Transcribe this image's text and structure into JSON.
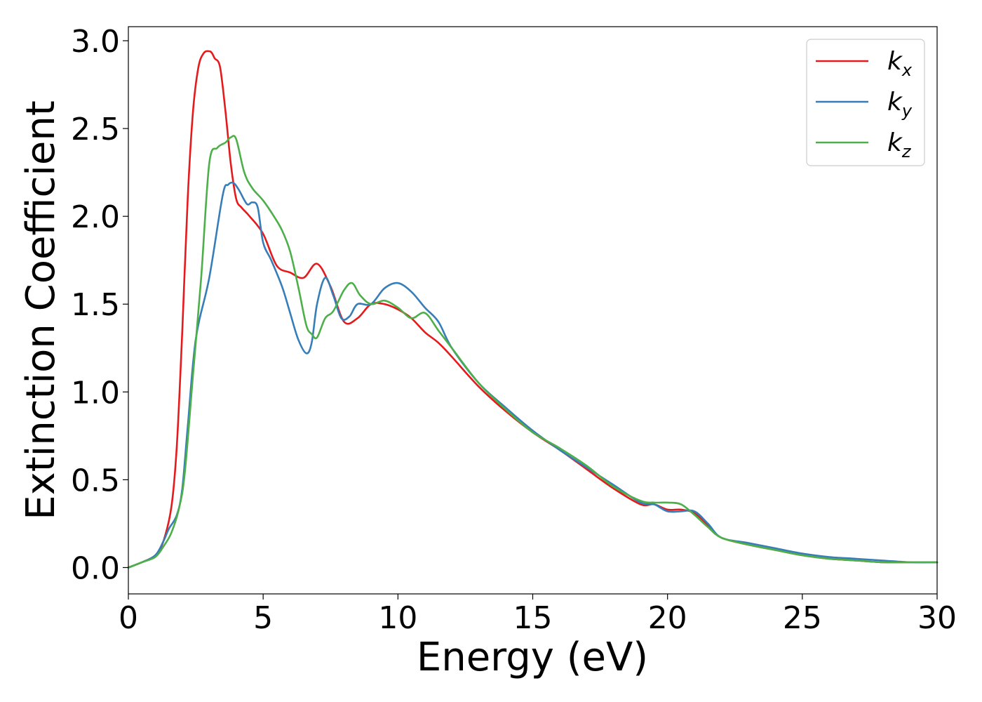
{
  "chart_data": {
    "type": "line",
    "title": "",
    "xlabel": "Energy (eV)",
    "ylabel": "Extinction Coefficient",
    "xlim": [
      0,
      30
    ],
    "ylim": [
      -0.15,
      3.08
    ],
    "xticks": [
      0,
      5,
      10,
      15,
      20,
      25,
      30
    ],
    "xtick_labels": [
      "0",
      "5",
      "10",
      "15",
      "20",
      "25",
      "30"
    ],
    "yticks": [
      0.0,
      0.5,
      1.0,
      1.5,
      2.0,
      2.5,
      3.0
    ],
    "ytick_labels": [
      "0.0",
      "0.5",
      "1.0",
      "1.5",
      "2.0",
      "2.5",
      "3.0"
    ],
    "grid": false,
    "legend_position": "top-right",
    "series": [
      {
        "name": "k_x",
        "legend_main": "k",
        "legend_sub": "x",
        "color": "#e41a1c",
        "x": [
          0,
          0.5,
          1.0,
          1.3,
          1.6,
          1.8,
          2.0,
          2.2,
          2.4,
          2.6,
          2.8,
          3.0,
          3.1,
          3.2,
          3.4,
          3.6,
          3.8,
          4.0,
          4.2,
          4.5,
          5.0,
          5.5,
          6.0,
          6.5,
          7.0,
          7.5,
          8.0,
          8.5,
          9.0,
          9.5,
          10.0,
          10.5,
          11.0,
          11.5,
          12.0,
          13.0,
          14.0,
          15.0,
          16.0,
          17.0,
          18.0,
          19.0,
          19.5,
          20.0,
          20.5,
          21.0,
          21.5,
          22.0,
          23.0,
          24.0,
          25.0,
          26.0,
          27.0,
          28.0,
          29.0,
          30.0
        ],
        "y": [
          0.0,
          0.03,
          0.07,
          0.15,
          0.35,
          0.7,
          1.35,
          2.1,
          2.6,
          2.85,
          2.93,
          2.94,
          2.93,
          2.9,
          2.85,
          2.6,
          2.3,
          2.1,
          2.05,
          2.0,
          1.9,
          1.72,
          1.68,
          1.65,
          1.73,
          1.6,
          1.4,
          1.42,
          1.5,
          1.5,
          1.47,
          1.42,
          1.34,
          1.28,
          1.2,
          1.03,
          0.89,
          0.77,
          0.67,
          0.56,
          0.45,
          0.36,
          0.36,
          0.33,
          0.33,
          0.31,
          0.24,
          0.17,
          0.13,
          0.1,
          0.07,
          0.05,
          0.04,
          0.03,
          0.03,
          0.03
        ]
      },
      {
        "name": "k_y",
        "legend_main": "k",
        "legend_sub": "y",
        "color": "#377eb8",
        "x": [
          0,
          0.5,
          1.0,
          1.3,
          1.5,
          1.8,
          2.0,
          2.2,
          2.5,
          3.0,
          3.5,
          3.7,
          3.9,
          4.1,
          4.4,
          4.6,
          4.8,
          5.0,
          5.3,
          5.7,
          6.0,
          6.3,
          6.6,
          6.8,
          7.0,
          7.3,
          7.6,
          7.9,
          8.2,
          8.5,
          9.0,
          9.5,
          10.0,
          10.5,
          11.0,
          11.5,
          12.0,
          13.0,
          14.0,
          15.0,
          16.0,
          17.0,
          18.0,
          19.0,
          19.5,
          20.0,
          20.5,
          21.0,
          21.5,
          22.0,
          23.0,
          24.0,
          25.0,
          26.0,
          27.0,
          28.0,
          29.0,
          30.0
        ],
        "y": [
          0.0,
          0.03,
          0.07,
          0.15,
          0.22,
          0.3,
          0.45,
          0.8,
          1.3,
          1.65,
          2.12,
          2.18,
          2.19,
          2.15,
          2.07,
          2.08,
          2.05,
          1.85,
          1.75,
          1.6,
          1.45,
          1.3,
          1.22,
          1.28,
          1.5,
          1.65,
          1.55,
          1.42,
          1.43,
          1.5,
          1.5,
          1.59,
          1.62,
          1.57,
          1.48,
          1.4,
          1.25,
          1.05,
          0.91,
          0.78,
          0.67,
          0.57,
          0.47,
          0.37,
          0.36,
          0.32,
          0.32,
          0.32,
          0.25,
          0.17,
          0.14,
          0.11,
          0.08,
          0.06,
          0.05,
          0.04,
          0.03,
          0.03
        ]
      },
      {
        "name": "k_z",
        "legend_main": "k",
        "legend_sub": "z",
        "color": "#4daf4a",
        "x": [
          0,
          0.5,
          1.0,
          1.3,
          1.6,
          1.9,
          2.1,
          2.4,
          2.7,
          3.0,
          3.3,
          3.6,
          3.8,
          4.0,
          4.3,
          4.6,
          5.0,
          5.4,
          5.7,
          6.0,
          6.3,
          6.6,
          6.8,
          7.0,
          7.3,
          7.6,
          8.0,
          8.3,
          8.6,
          9.0,
          9.5,
          10.0,
          10.5,
          11.0,
          11.5,
          12.0,
          13.0,
          14.0,
          15.0,
          16.0,
          17.0,
          18.0,
          19.0,
          19.5,
          20.0,
          20.5,
          21.0,
          21.5,
          22.0,
          23.0,
          24.0,
          25.0,
          26.0,
          27.0,
          28.0,
          29.0,
          30.0
        ],
        "y": [
          0.0,
          0.03,
          0.06,
          0.12,
          0.2,
          0.35,
          0.55,
          1.1,
          1.65,
          2.3,
          2.39,
          2.42,
          2.45,
          2.44,
          2.25,
          2.16,
          2.09,
          2.0,
          1.92,
          1.8,
          1.6,
          1.38,
          1.33,
          1.31,
          1.42,
          1.46,
          1.58,
          1.62,
          1.55,
          1.5,
          1.52,
          1.48,
          1.42,
          1.45,
          1.35,
          1.25,
          1.05,
          0.9,
          0.77,
          0.68,
          0.58,
          0.46,
          0.38,
          0.37,
          0.37,
          0.36,
          0.3,
          0.23,
          0.17,
          0.13,
          0.1,
          0.07,
          0.05,
          0.04,
          0.03,
          0.03,
          0.03
        ]
      }
    ]
  }
}
